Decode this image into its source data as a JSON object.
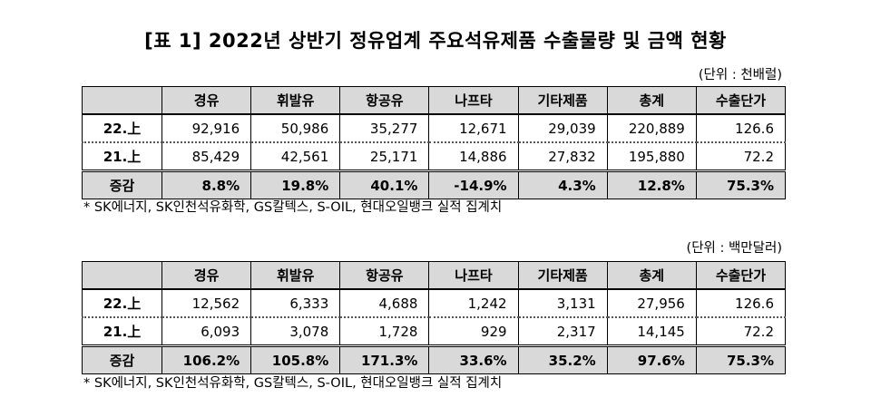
{
  "title": "[표 1] 2022년 상반기 정유업계 주요석유제품 수출물량 및 금액 현황",
  "columns": [
    "",
    "경유",
    "휘발유",
    "항공유",
    "나프타",
    "기타제품",
    "총계",
    "수출단가"
  ],
  "volume": {
    "unit": "(단위 : 천배럴)",
    "rows": [
      {
        "label": "22.上",
        "values": [
          "92,916",
          "50,986",
          "35,277",
          "12,671",
          "29,039",
          "220,889",
          "126.6"
        ]
      },
      {
        "label": "21.上",
        "values": [
          "85,429",
          "42,561",
          "25,171",
          "14,886",
          "27,832",
          "195,880",
          "72.2"
        ]
      },
      {
        "label": "증감",
        "values": [
          "8.8%",
          "19.8%",
          "40.1%",
          "-14.9%",
          "4.3%",
          "12.8%",
          "75.3%"
        ]
      }
    ],
    "note": "* SK에너지, SK인천석유화학, GS칼텍스, S-OIL, 현대오일뱅크 실적 집계치"
  },
  "amount": {
    "unit": "(단위 : 백만달러)",
    "rows": [
      {
        "label": "22.上",
        "values": [
          "12,562",
          "6,333",
          "4,688",
          "1,242",
          "3,131",
          "27,956",
          "126.6"
        ]
      },
      {
        "label": "21.上",
        "values": [
          "6,093",
          "3,078",
          "1,728",
          "929",
          "2,317",
          "14,145",
          "72.2"
        ]
      },
      {
        "label": "증감",
        "values": [
          "106.2%",
          "105.8%",
          "171.3%",
          "33.6%",
          "35.2%",
          "97.6%",
          "75.3%"
        ]
      }
    ],
    "note": "* SK에너지, SK인천석유화학, GS칼텍스, S-OIL, 현대오일뱅크 실적 집계치"
  }
}
